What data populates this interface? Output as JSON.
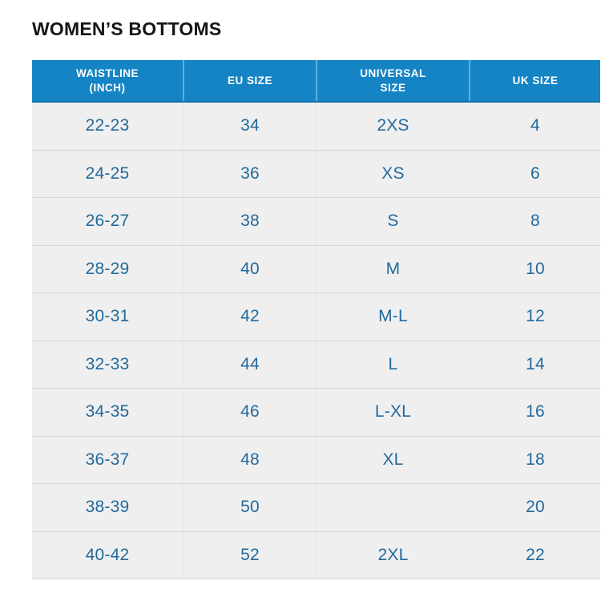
{
  "title": "WOMEN’S BOTTOMS",
  "colors": {
    "page_bg": "#ffffff",
    "title_text": "#161616",
    "header_bg": "#1584c4",
    "header_text": "#ffffff",
    "header_divider": "#5fb0da",
    "header_bottom_edge": "#0d6fa9",
    "row_bg": "#f0eff0",
    "row_divider": "#d7d6d7",
    "col_divider": "#ebebeb",
    "cell_text": "#216a9b"
  },
  "chart_data": {
    "type": "table",
    "title": "WOMEN’S BOTTOMS",
    "columns": [
      {
        "id": "waistline-inch",
        "label": "WAISTLINE (INCH)",
        "display": "WAISTLINE\n(INCH)"
      },
      {
        "id": "eu-size",
        "label": "EU SIZE",
        "display": "EU SIZE"
      },
      {
        "id": "universal-size",
        "label": "UNIVERSAL SIZE",
        "display": "UNIVERSAL\nSIZE"
      },
      {
        "id": "uk-size",
        "label": "UK SIZE",
        "display": "UK SIZE"
      }
    ],
    "rows": [
      [
        "22-23",
        "34",
        "2XS",
        "4"
      ],
      [
        "24-25",
        "36",
        "XS",
        "6"
      ],
      [
        "26-27",
        "38",
        "S",
        "8"
      ],
      [
        "28-29",
        "40",
        "M",
        "10"
      ],
      [
        "30-31",
        "42",
        "M-L",
        "12"
      ],
      [
        "32-33",
        "44",
        "L",
        "14"
      ],
      [
        "34-35",
        "46",
        "L-XL",
        "16"
      ],
      [
        "36-37",
        "48",
        "XL",
        "18"
      ],
      [
        "38-39",
        "50",
        "",
        "20"
      ],
      [
        "40-42",
        "52",
        "2XL",
        "22"
      ]
    ]
  }
}
